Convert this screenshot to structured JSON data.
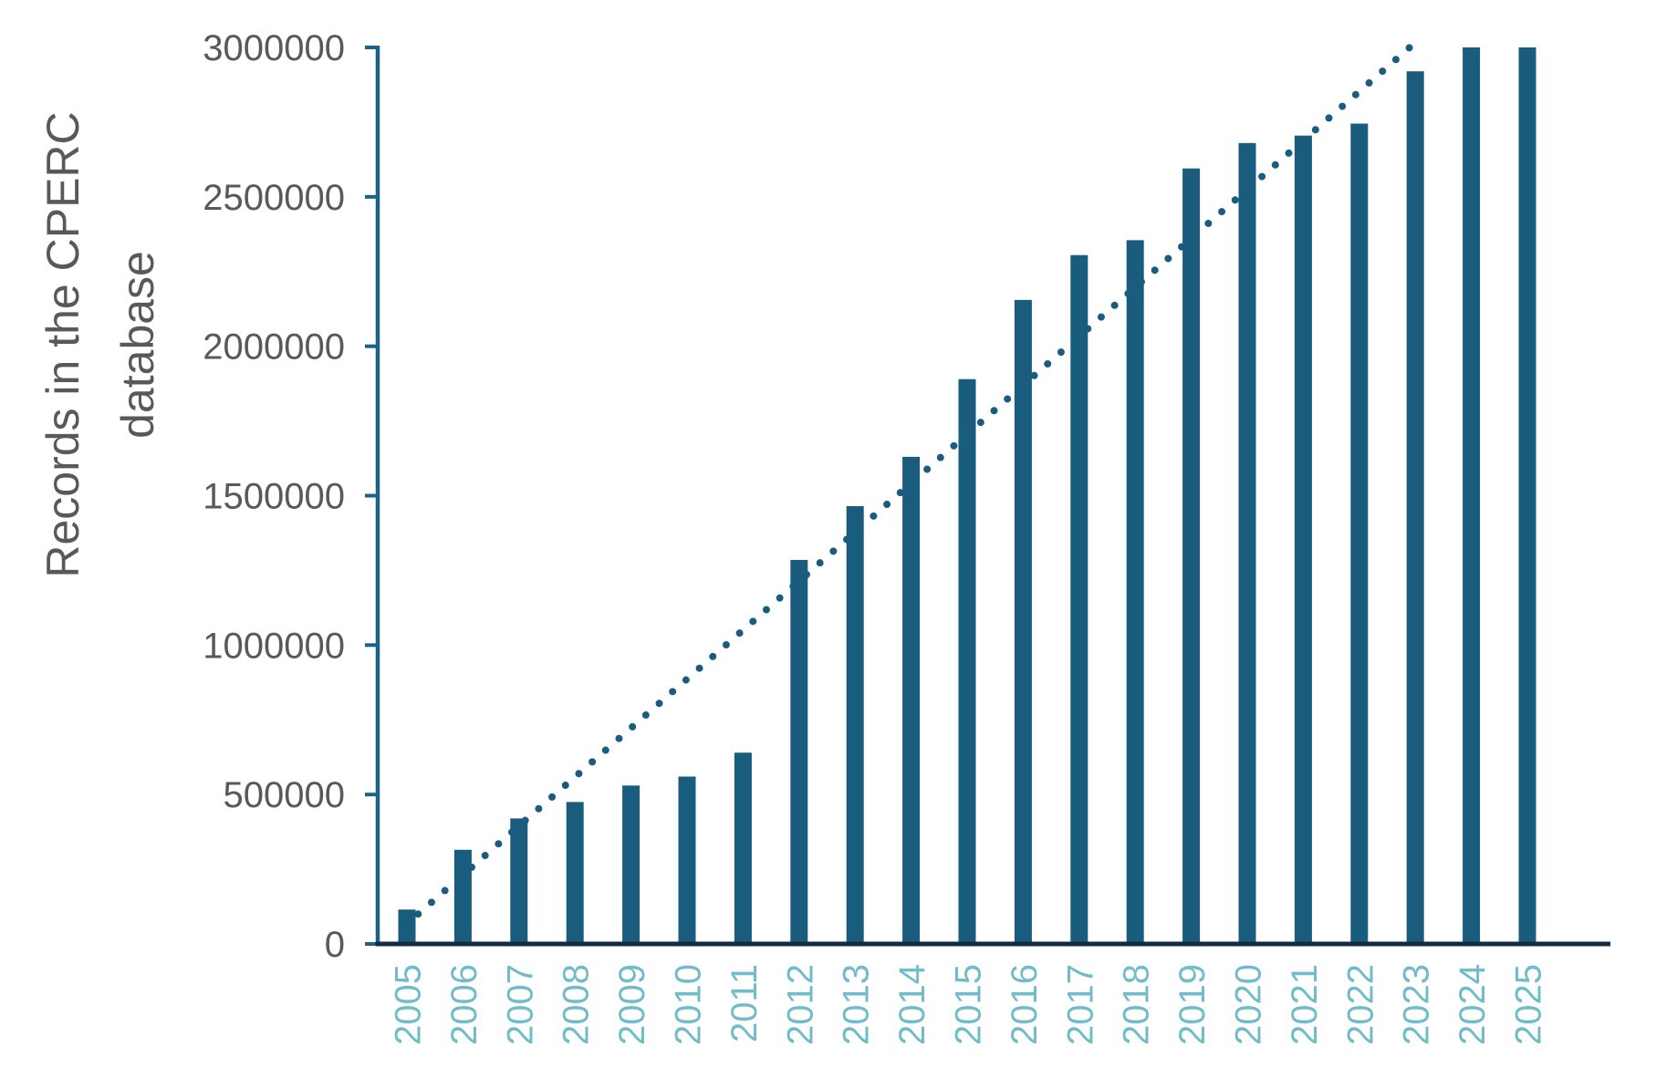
{
  "chart_data": {
    "type": "bar",
    "title": "",
    "xlabel": "",
    "ylabel": "Records in the CPERC database",
    "ylabel_lines": [
      "Records in the CPERC",
      "database"
    ],
    "categories": [
      "2005",
      "2006",
      "2007",
      "2008",
      "2009",
      "2010",
      "2011",
      "2012",
      "2013",
      "2014",
      "2015",
      "2016",
      "2017",
      "2018",
      "2019",
      "2020",
      "2021",
      "2022",
      "2023",
      "2024",
      "2025"
    ],
    "values": [
      115000,
      315000,
      420000,
      475000,
      530000,
      560000,
      640000,
      1285000,
      1465000,
      1630000,
      1890000,
      2155000,
      2305000,
      2355000,
      2595000,
      2680000,
      2705000,
      2745000,
      2920000,
      3000000,
      3000000
    ],
    "ylim": [
      0,
      3000000
    ],
    "yticks": [
      0,
      500000,
      1000000,
      1500000,
      2000000,
      2500000,
      3000000
    ],
    "grid": false,
    "legend": false,
    "trendline": {
      "style": "dotted",
      "start_year": 2005.2,
      "start_value": 100000,
      "end_year": 2022.9,
      "end_value": 3000000
    },
    "colors": {
      "bar": "#1A5C7E",
      "trend_dot": "#1A5C7E",
      "y_axis_line": "#1D6285",
      "x_axis_line": "#142B40",
      "x_tick_label": "#70BCCA",
      "y_tick_label": "#595959",
      "axis_title": "#595959",
      "background": "#FFFFFF"
    }
  }
}
